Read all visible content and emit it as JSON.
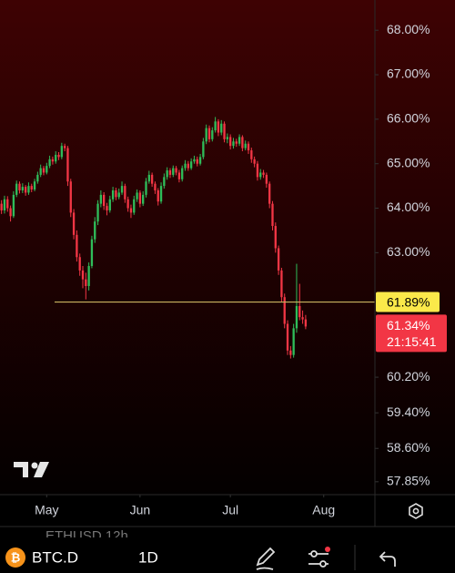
{
  "chart_data": {
    "type": "candlestick",
    "symbol": "BTC.D",
    "interval": "1D",
    "background_label": "ETHUSD 12h",
    "colors": {
      "up": "#2fbd5a",
      "down": "#f23645"
    },
    "xlim": [
      -0.5,
      124
    ],
    "xticks": [
      {
        "value": 15,
        "label": "May"
      },
      {
        "value": 46,
        "label": "Jun"
      },
      {
        "value": 76,
        "label": "Jul"
      },
      {
        "value": 107,
        "label": "Aug"
      }
    ],
    "ylim": [
      57.56,
      68.68
    ],
    "yticks": [
      {
        "value": 68,
        "label": "68.00%"
      },
      {
        "value": 67,
        "label": "67.00%"
      },
      {
        "value": 66,
        "label": "66.00%"
      },
      {
        "value": 65,
        "label": "65.00%"
      },
      {
        "value": 64,
        "label": "64.00%"
      },
      {
        "value": 63,
        "label": "63.00%"
      },
      {
        "value": 60.2,
        "label": "60.20%"
      },
      {
        "value": 59.4,
        "label": "59.40%"
      },
      {
        "value": 58.6,
        "label": "58.60%"
      },
      {
        "value": 57.85,
        "label": "57.85%"
      }
    ],
    "price_line": {
      "value": 61.89,
      "label": "61.89%",
      "color": "#c8b560"
    },
    "last_price": {
      "value": 61.34,
      "label": "61.34%",
      "countdown": "21:15:41"
    },
    "series": [
      {
        "name": "BTC.D",
        "values": [
          [
            64.1,
            64.18,
            63.87,
            63.95
          ],
          [
            63.95,
            64.28,
            63.88,
            64.2
          ],
          [
            64.2,
            64.27,
            63.92,
            64.0
          ],
          [
            64.0,
            64.06,
            63.7,
            63.82
          ],
          [
            63.82,
            64.38,
            63.78,
            64.3
          ],
          [
            64.3,
            64.62,
            64.25,
            64.55
          ],
          [
            64.55,
            64.6,
            64.33,
            64.4
          ],
          [
            64.4,
            64.56,
            64.34,
            64.48
          ],
          [
            64.48,
            64.52,
            64.28,
            64.35
          ],
          [
            64.35,
            64.58,
            64.3,
            64.5
          ],
          [
            64.5,
            64.55,
            64.36,
            64.42
          ],
          [
            64.42,
            64.66,
            64.38,
            64.6
          ],
          [
            64.6,
            64.82,
            64.55,
            64.75
          ],
          [
            64.75,
            64.98,
            64.7,
            64.9
          ],
          [
            64.9,
            64.95,
            64.74,
            64.8
          ],
          [
            64.8,
            65.02,
            64.76,
            64.95
          ],
          [
            64.95,
            65.18,
            64.9,
            65.1
          ],
          [
            65.1,
            65.16,
            64.98,
            65.05
          ],
          [
            65.05,
            65.28,
            65.0,
            65.2
          ],
          [
            65.2,
            65.26,
            65.08,
            65.15
          ],
          [
            65.15,
            65.47,
            65.1,
            65.4
          ],
          [
            65.4,
            65.45,
            65.28,
            65.35
          ],
          [
            65.35,
            65.4,
            64.5,
            64.6
          ],
          [
            64.6,
            64.66,
            63.8,
            63.9
          ],
          [
            63.9,
            63.98,
            63.3,
            63.4
          ],
          [
            63.4,
            63.5,
            62.8,
            62.9
          ],
          [
            62.9,
            62.98,
            62.48,
            62.6
          ],
          [
            62.6,
            62.7,
            62.2,
            62.4
          ],
          [
            62.4,
            62.55,
            61.95,
            62.25
          ],
          [
            62.25,
            62.78,
            62.15,
            62.7
          ],
          [
            62.7,
            63.38,
            62.65,
            63.3
          ],
          [
            63.3,
            63.8,
            63.22,
            63.7
          ],
          [
            63.7,
            64.18,
            63.62,
            64.1
          ],
          [
            64.1,
            64.4,
            64.02,
            64.3
          ],
          [
            64.3,
            64.36,
            63.96,
            64.05
          ],
          [
            64.05,
            64.12,
            63.84,
            63.95
          ],
          [
            63.95,
            64.28,
            63.9,
            64.2
          ],
          [
            64.2,
            64.48,
            64.14,
            64.4
          ],
          [
            64.4,
            64.46,
            64.18,
            64.25
          ],
          [
            64.25,
            64.44,
            64.2,
            64.35
          ],
          [
            64.35,
            64.6,
            64.3,
            64.5
          ],
          [
            64.5,
            64.55,
            64.12,
            64.2
          ],
          [
            64.2,
            64.26,
            63.92,
            64.0
          ],
          [
            64.0,
            64.08,
            63.78,
            63.9
          ],
          [
            63.9,
            64.28,
            63.85,
            64.2
          ],
          [
            64.2,
            64.42,
            64.14,
            64.35
          ],
          [
            64.35,
            64.4,
            64.02,
            64.1
          ],
          [
            64.1,
            64.38,
            64.05,
            64.3
          ],
          [
            64.3,
            64.68,
            64.24,
            64.6
          ],
          [
            64.6,
            64.84,
            64.55,
            64.75
          ],
          [
            64.75,
            64.8,
            64.48,
            64.55
          ],
          [
            64.55,
            64.6,
            64.32,
            64.4
          ],
          [
            64.4,
            64.45,
            64.06,
            64.15
          ],
          [
            64.15,
            64.58,
            64.1,
            64.5
          ],
          [
            64.5,
            64.78,
            64.44,
            64.7
          ],
          [
            64.7,
            64.92,
            64.64,
            64.85
          ],
          [
            64.85,
            64.9,
            64.68,
            64.75
          ],
          [
            64.75,
            64.96,
            64.7,
            64.9
          ],
          [
            64.9,
            64.95,
            64.74,
            64.8
          ],
          [
            64.8,
            64.86,
            64.58,
            64.65
          ],
          [
            64.65,
            64.96,
            64.6,
            64.9
          ],
          [
            64.9,
            65.08,
            64.84,
            65.0
          ],
          [
            65.0,
            65.06,
            64.84,
            64.9
          ],
          [
            64.9,
            65.12,
            64.86,
            65.05
          ],
          [
            65.05,
            65.18,
            65.0,
            65.1
          ],
          [
            65.1,
            65.16,
            64.94,
            65.0
          ],
          [
            65.0,
            65.22,
            64.96,
            65.15
          ],
          [
            65.15,
            65.58,
            65.1,
            65.5
          ],
          [
            65.5,
            65.88,
            65.44,
            65.8
          ],
          [
            65.8,
            65.86,
            65.48,
            65.55
          ],
          [
            65.55,
            65.82,
            65.5,
            65.75
          ],
          [
            65.75,
            66.05,
            65.7,
            65.95
          ],
          [
            65.95,
            66.0,
            65.62,
            65.7
          ],
          [
            65.7,
            65.98,
            65.64,
            65.9
          ],
          [
            65.9,
            65.95,
            65.48,
            65.55
          ],
          [
            65.55,
            65.68,
            65.46,
            65.6
          ],
          [
            65.6,
            65.66,
            65.32,
            65.4
          ],
          [
            65.4,
            65.58,
            65.34,
            65.5
          ],
          [
            65.5,
            65.56,
            65.38,
            65.45
          ],
          [
            65.45,
            65.66,
            65.4,
            65.6
          ],
          [
            65.6,
            65.64,
            65.28,
            65.35
          ],
          [
            65.35,
            65.52,
            65.3,
            65.45
          ],
          [
            65.45,
            65.5,
            65.22,
            65.3
          ],
          [
            65.3,
            65.36,
            65.02,
            65.1
          ],
          [
            65.1,
            65.16,
            64.92,
            65.0
          ],
          [
            65.0,
            65.06,
            64.62,
            64.7
          ],
          [
            64.7,
            64.88,
            64.64,
            64.8
          ],
          [
            64.8,
            64.86,
            64.68,
            64.75
          ],
          [
            64.75,
            64.8,
            64.46,
            64.55
          ],
          [
            64.55,
            64.6,
            64.0,
            64.1
          ],
          [
            64.1,
            64.16,
            63.5,
            63.6
          ],
          [
            63.6,
            63.68,
            63.0,
            63.1
          ],
          [
            63.1,
            63.16,
            62.5,
            62.6
          ],
          [
            62.6,
            62.66,
            61.9,
            62.0
          ],
          [
            62.0,
            62.08,
            61.3,
            61.4
          ],
          [
            61.4,
            61.48,
            60.7,
            60.8
          ],
          [
            60.8,
            60.9,
            60.62,
            60.7
          ],
          [
            60.7,
            61.4,
            60.64,
            61.3
          ],
          [
            61.3,
            62.75,
            61.2,
            61.8
          ],
          [
            61.8,
            62.3,
            61.48,
            61.55
          ],
          [
            61.55,
            61.7,
            61.4,
            61.5
          ],
          [
            61.5,
            61.6,
            61.28,
            61.34
          ]
        ]
      }
    ]
  }
}
